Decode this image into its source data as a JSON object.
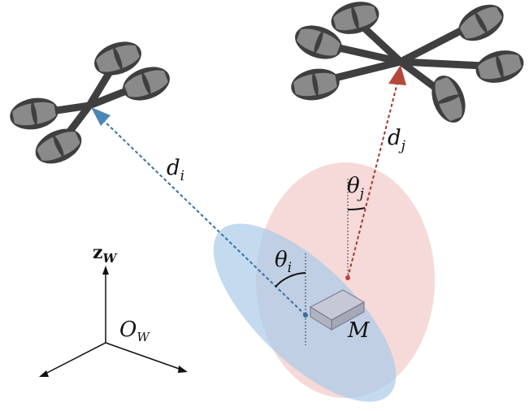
{
  "labels": {
    "d_i_main": "d",
    "d_i_sub": "i",
    "d_j_main": "d",
    "d_j_sub": "j",
    "theta_i_main": "θ",
    "theta_i_sub": "i",
    "theta_j_main": "θ",
    "theta_j_sub": "j",
    "z_main": "z",
    "z_sub": "W",
    "origin_main": "O",
    "origin_sub": "W",
    "marker": "M"
  },
  "colors": {
    "drone_body": "#3f3f3f",
    "rotor_light": "#8a8a8a",
    "blue": "#4b86b4",
    "blue_ellipse": "#aacbe8",
    "red": "#b5483b",
    "red_ellipse": "#f3cccc",
    "marker_fill": "#b7b7c3",
    "marker_stroke": "#6f6f80"
  },
  "icons": {
    "drone_i": "quadrotor-icon",
    "drone_j": "hexarotor-icon",
    "marker": "box-marker-icon"
  }
}
